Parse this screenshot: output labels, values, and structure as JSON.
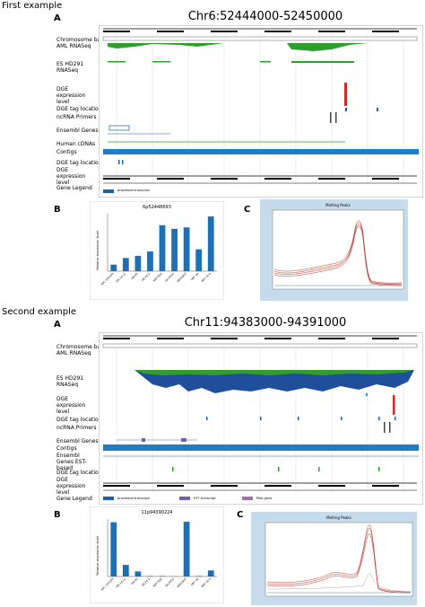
{
  "example1": {
    "section_title": "First example",
    "panel_a_label": "A",
    "region_title": "Chr6:52444000-52450000",
    "tracks": [
      "Chromosome bands",
      "AML RNASeq",
      "ES HD291 RNASeq",
      "DGE expression level",
      "DGE tag location",
      "ncRNA Primers",
      "Ensembl Genes",
      "Human cDNAs",
      "Contigs",
      "DGE tag location",
      "DGE expression level",
      "Gene Legend"
    ],
    "legend": [
      "processed transcript"
    ],
    "panel_b_label": "B",
    "panel_c_label": "C",
    "melt_title": "Melting Peaks",
    "chart_data": {
      "type": "bar",
      "title": "6p52448693",
      "ylabel": "Relative expression level",
      "categories": [
        "ESC 101103",
        "iPS 14 L1",
        "H9 ES",
        "H9 ES 2",
        "HEF-TDX",
        "SH-SY5Y",
        "HEK293T",
        "HEF 10",
        "HEF 10 4"
      ],
      "values": [
        0.9,
        1.8,
        2.1,
        2.7,
        6.3,
        5.8,
        6.0,
        3.0,
        7.5
      ]
    }
  },
  "example2": {
    "section_title": "Second example",
    "panel_a_label": "A",
    "region_title": "Chr11:94383000-94391000",
    "tracks": [
      "Chromosome bands",
      "AML RNASeq",
      "ES HD291 RNASeq",
      "DGE expression level",
      "DGE tag location",
      "ncRNA Primers",
      "Ensembl Genes",
      "Contigs",
      "Ensembl Genes EST-based",
      "DGE tag location",
      "DGE expression level",
      "Gene Legend"
    ],
    "legend": [
      "processed transcript",
      "EST transcript",
      "RNA gene"
    ],
    "panel_b_label": "B",
    "panel_c_label": "C",
    "melt_title": "Melting Peaks",
    "chart_data": {
      "type": "bar",
      "title": "11p94390224",
      "ylabel": "Relative expression level",
      "categories": [
        "ESC 101103",
        "iPS 14 L1",
        "H9 ES",
        "H9 ES 2",
        "HEF-TDX",
        "SH-SY5Y",
        "HEK293T",
        "HEF 10",
        "HEF 10 4"
      ],
      "values": [
        10.8,
        2.3,
        1.0,
        0.1,
        0.1,
        0.05,
        10.9,
        0.1,
        1.2
      ]
    }
  }
}
